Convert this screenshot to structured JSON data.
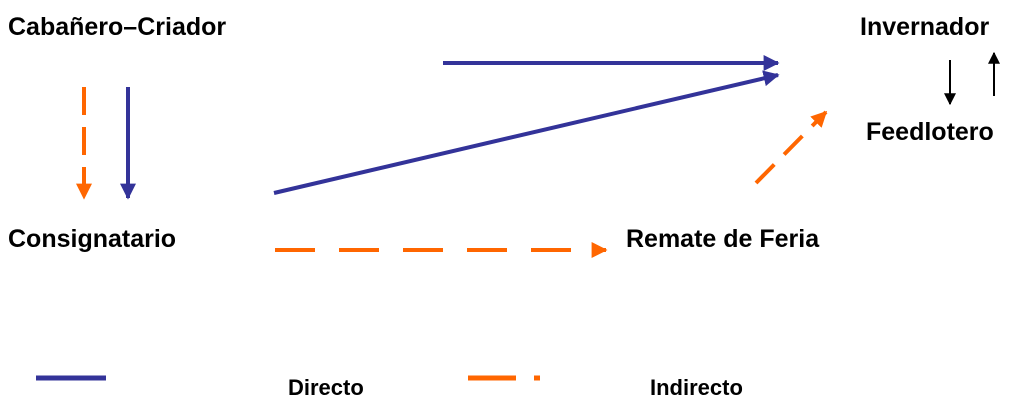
{
  "nodes": {
    "criador": "Cabañero–Criador",
    "invernador": "Invernador",
    "feedlotero": "Feedlotero",
    "consignatario": "Consignatario",
    "remate": "Remate de Feria"
  },
  "legend": {
    "directo": "Directo",
    "indirecto": "Indirecto"
  },
  "colors": {
    "directo": "#333399",
    "indirecto": "#FF6600",
    "text": "#000000"
  }
}
